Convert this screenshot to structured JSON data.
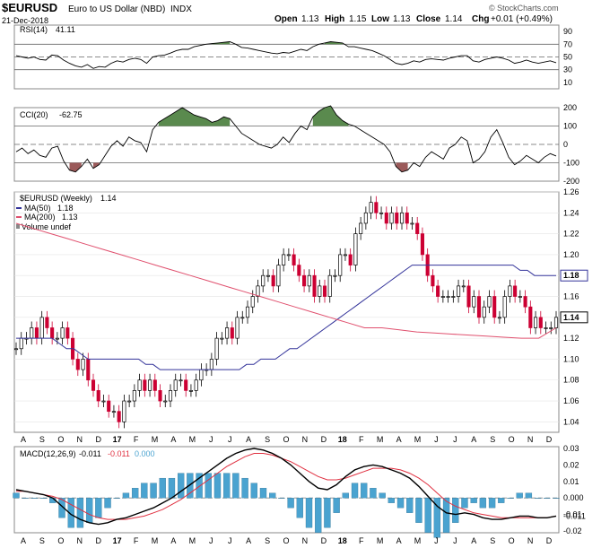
{
  "header": {
    "symbol": "$EURUSD",
    "description": "Euro to US Dollar (NBD)",
    "exchange": "INDX",
    "date": "21-Dec-2018",
    "open_label": "Open",
    "open": "1.13",
    "high_label": "High",
    "high": "1.15",
    "low_label": "Low",
    "low": "1.13",
    "close_label": "Close",
    "close": "1.14",
    "chg_label": "Chg",
    "chg": "+0.01 (+0.49%)",
    "copyright": "© StockCharts.com"
  },
  "colors": {
    "up_candle": "#ffffff",
    "down_candle": "#cc0033",
    "ma50": "#33339a",
    "ma200": "#e0506e",
    "rsi_fill": "#5a8a4e",
    "cci_fill_pos": "#5a8a4e",
    "cci_fill_neg": "#9b5a5a",
    "macd_hist": "#4aa3d0",
    "macd_signal": "#e03040",
    "last_value_box": "#ffffff"
  },
  "months_axis": [
    "A",
    "S",
    "O",
    "N",
    "D",
    "17",
    "F",
    "M",
    "A",
    "M",
    "J",
    "J",
    "A",
    "S",
    "O",
    "N",
    "D",
    "18",
    "F",
    "M",
    "A",
    "M",
    "J",
    "J",
    "A",
    "S",
    "O",
    "N",
    "D"
  ],
  "chart_data": [
    {
      "type": "line",
      "panel": "rsi",
      "label": "RSI(14)",
      "last_value": "41.11",
      "ylim": [
        0,
        100
      ],
      "y_ticks": [
        "90",
        "70",
        "50",
        "30",
        "10"
      ],
      "reference_lines": [
        70,
        50,
        30
      ],
      "values": [
        52,
        50,
        48,
        50,
        46,
        45,
        53,
        52,
        45,
        40,
        36,
        34,
        38,
        32,
        35,
        34,
        40,
        44,
        42,
        46,
        48,
        46,
        40,
        50,
        52,
        53,
        56,
        60,
        62,
        62,
        66,
        68,
        70,
        71,
        72,
        73,
        74,
        70,
        65,
        64,
        62,
        60,
        58,
        56,
        55,
        57,
        56,
        59,
        62,
        60,
        66,
        70,
        72,
        74,
        73,
        72,
        66,
        66,
        64,
        62,
        60,
        56,
        52,
        46,
        40,
        38,
        40,
        44,
        42,
        46,
        47,
        46,
        45,
        48,
        50,
        52,
        52,
        44,
        42,
        46,
        48,
        50,
        48,
        45,
        40,
        42,
        45,
        42,
        40,
        42,
        44,
        41
      ]
    },
    {
      "type": "line",
      "panel": "cci",
      "label": "CCI(20)",
      "last_value": "-62.75",
      "ylim": [
        -200,
        200
      ],
      "y_ticks": [
        "200",
        "100",
        "0",
        "-100",
        "-200"
      ],
      "reference_lines": [
        100,
        0,
        -100
      ],
      "values": [
        -40,
        -20,
        -50,
        -30,
        -60,
        -70,
        -20,
        -10,
        -90,
        -140,
        -150,
        -120,
        -80,
        -130,
        -110,
        -60,
        -10,
        20,
        -10,
        40,
        20,
        10,
        -40,
        80,
        120,
        140,
        160,
        180,
        200,
        180,
        160,
        150,
        140,
        120,
        130,
        150,
        140,
        100,
        60,
        40,
        20,
        0,
        -10,
        -20,
        0,
        40,
        10,
        60,
        100,
        80,
        150,
        180,
        200,
        210,
        160,
        130,
        110,
        100,
        80,
        60,
        40,
        20,
        0,
        -40,
        -120,
        -150,
        -140,
        -100,
        -120,
        -70,
        -40,
        -60,
        -80,
        -20,
        0,
        40,
        20,
        -100,
        -80,
        -40,
        40,
        80,
        10,
        -70,
        -110,
        -90,
        -60,
        -80,
        -100,
        -70,
        -50,
        -63
      ]
    },
    {
      "type": "candlestick",
      "panel": "price",
      "label": "$EURUSD (Weekly)",
      "last_value": "1.14",
      "legend": [
        {
          "name": "MA(50)",
          "value": "1.18"
        },
        {
          "name": "MA(200)",
          "value": "1.13"
        },
        {
          "name": "Volume undef",
          "value": ""
        }
      ],
      "ylim": [
        1.03,
        1.26
      ],
      "y_ticks": [
        "1.26",
        "1.24",
        "1.22",
        "1.20",
        "1.18",
        "1.16",
        "1.14",
        "1.12",
        "1.10",
        "1.08",
        "1.06",
        "1.04"
      ],
      "ma50_last": "1.18",
      "ma200_last": "1.13",
      "close": [
        1.11,
        1.12,
        1.12,
        1.13,
        1.12,
        1.14,
        1.13,
        1.12,
        1.12,
        1.13,
        1.12,
        1.1,
        1.09,
        1.1,
        1.08,
        1.07,
        1.06,
        1.06,
        1.05,
        1.05,
        1.04,
        1.06,
        1.06,
        1.07,
        1.08,
        1.07,
        1.08,
        1.07,
        1.06,
        1.06,
        1.07,
        1.08,
        1.08,
        1.07,
        1.07,
        1.08,
        1.09,
        1.09,
        1.1,
        1.12,
        1.12,
        1.13,
        1.12,
        1.14,
        1.14,
        1.15,
        1.16,
        1.17,
        1.18,
        1.18,
        1.17,
        1.19,
        1.2,
        1.2,
        1.19,
        1.18,
        1.17,
        1.18,
        1.16,
        1.17,
        1.16,
        1.18,
        1.18,
        1.2,
        1.2,
        1.19,
        1.22,
        1.23,
        1.24,
        1.25,
        1.24,
        1.24,
        1.23,
        1.24,
        1.23,
        1.24,
        1.23,
        1.23,
        1.22,
        1.2,
        1.18,
        1.17,
        1.16,
        1.16,
        1.16,
        1.16,
        1.17,
        1.17,
        1.15,
        1.16,
        1.14,
        1.15,
        1.16,
        1.14,
        1.14,
        1.16,
        1.17,
        1.16,
        1.16,
        1.15,
        1.13,
        1.14,
        1.13,
        1.13,
        1.13,
        1.14
      ],
      "ma50": [
        1.12,
        1.12,
        1.12,
        1.12,
        1.12,
        1.12,
        1.115,
        1.11,
        1.11,
        1.105,
        1.1,
        1.1,
        1.1,
        1.1,
        1.1,
        1.1,
        1.1,
        1.1,
        1.095,
        1.095,
        1.09,
        1.09,
        1.09,
        1.09,
        1.09,
        1.09,
        1.09,
        1.09,
        1.09,
        1.09,
        1.09,
        1.09,
        1.095,
        1.095,
        1.1,
        1.1,
        1.1,
        1.105,
        1.11,
        1.11,
        1.115,
        1.12,
        1.125,
        1.13,
        1.135,
        1.14,
        1.145,
        1.15,
        1.155,
        1.16,
        1.165,
        1.17,
        1.175,
        1.18,
        1.185,
        1.19,
        1.19,
        1.19,
        1.19,
        1.19,
        1.19,
        1.19,
        1.19,
        1.19,
        1.19,
        1.19,
        1.19,
        1.19,
        1.19,
        1.19,
        1.185,
        1.185,
        1.18,
        1.18,
        1.18,
        1.18
      ],
      "ma200": [
        1.23,
        1.225,
        1.22,
        1.215,
        1.21,
        1.205,
        1.2,
        1.195,
        1.19,
        1.185,
        1.18,
        1.175,
        1.17,
        1.165,
        1.16,
        1.155,
        1.15,
        1.145,
        1.14,
        1.135,
        1.13,
        1.13,
        1.128,
        1.126,
        1.125,
        1.124,
        1.123,
        1.122,
        1.121,
        1.12,
        1.12,
        1.13
      ]
    },
    {
      "type": "line",
      "panel": "macd",
      "label": "MACD(12,26,9)",
      "macd_value": "-0.011",
      "signal_value": "-0.011",
      "hist_value": "0.000",
      "ylim": [
        -0.02,
        0.03
      ],
      "y_ticks": [
        "0.03",
        "0.02",
        "0.01",
        "0.000",
        "-0.01",
        "-0.011",
        "-0.02"
      ],
      "macd": [
        0.005,
        0.004,
        0.003,
        0.002,
        0.0,
        -0.005,
        -0.01,
        -0.013,
        -0.015,
        -0.016,
        -0.015,
        -0.013,
        -0.012,
        -0.01,
        -0.008,
        -0.006,
        -0.003,
        0.0,
        0.004,
        0.008,
        0.012,
        0.016,
        0.02,
        0.024,
        0.027,
        0.029,
        0.03,
        0.029,
        0.027,
        0.024,
        0.02,
        0.015,
        0.01,
        0.006,
        0.005,
        0.008,
        0.013,
        0.017,
        0.019,
        0.02,
        0.019,
        0.017,
        0.015,
        0.012,
        0.007,
        0.001,
        -0.005,
        -0.009,
        -0.01,
        -0.009,
        -0.01,
        -0.012,
        -0.013,
        -0.013,
        -0.012,
        -0.011,
        -0.011,
        -0.012,
        -0.012,
        -0.011
      ],
      "signal": [
        0.004,
        0.004,
        0.003,
        0.002,
        0.001,
        -0.001,
        -0.004,
        -0.007,
        -0.01,
        -0.012,
        -0.013,
        -0.013,
        -0.013,
        -0.012,
        -0.011,
        -0.009,
        -0.007,
        -0.004,
        -0.001,
        0.003,
        0.007,
        0.011,
        0.015,
        0.019,
        0.022,
        0.025,
        0.027,
        0.027,
        0.026,
        0.024,
        0.022,
        0.019,
        0.016,
        0.013,
        0.011,
        0.011,
        0.012,
        0.014,
        0.016,
        0.018,
        0.018,
        0.018,
        0.017,
        0.015,
        0.012,
        0.008,
        0.003,
        -0.002,
        -0.005,
        -0.007,
        -0.009,
        -0.01,
        -0.011,
        -0.012,
        -0.012,
        -0.012,
        -0.012,
        -0.012,
        -0.012,
        -0.011
      ]
    }
  ]
}
